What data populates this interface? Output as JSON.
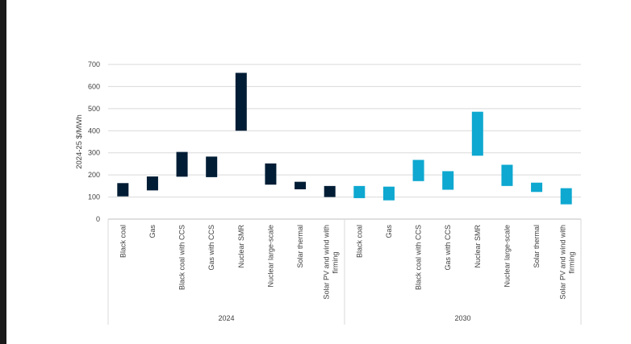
{
  "chart_data": {
    "type": "bar",
    "subtype": "floating-range",
    "ylabel": "2024-25 $/MWh",
    "ylim": [
      0,
      700
    ],
    "yticks": [
      0,
      100,
      200,
      300,
      400,
      500,
      600,
      700
    ],
    "grid": true,
    "categories": [
      "Black coal",
      "Gas",
      "Black coal with CCS",
      "Gas with CCS",
      "Nuclear SMR",
      "Nuclear large-scale",
      "Solar thermal",
      "Solar PV and wind with firming"
    ],
    "groups": [
      {
        "name": "2024",
        "color": "#001d35",
        "ranges": [
          [
            103,
            163
          ],
          [
            130,
            193
          ],
          [
            192,
            304
          ],
          [
            190,
            283
          ],
          [
            400,
            662
          ],
          [
            156,
            252
          ],
          [
            135,
            169
          ],
          [
            100,
            150
          ]
        ]
      },
      {
        "name": "2030",
        "color": "#0ea8d0",
        "ranges": [
          [
            95,
            150
          ],
          [
            85,
            147
          ],
          [
            172,
            268
          ],
          [
            133,
            217
          ],
          [
            287,
            486
          ],
          [
            150,
            246
          ],
          [
            123,
            165
          ],
          [
            67,
            140
          ]
        ]
      }
    ]
  }
}
